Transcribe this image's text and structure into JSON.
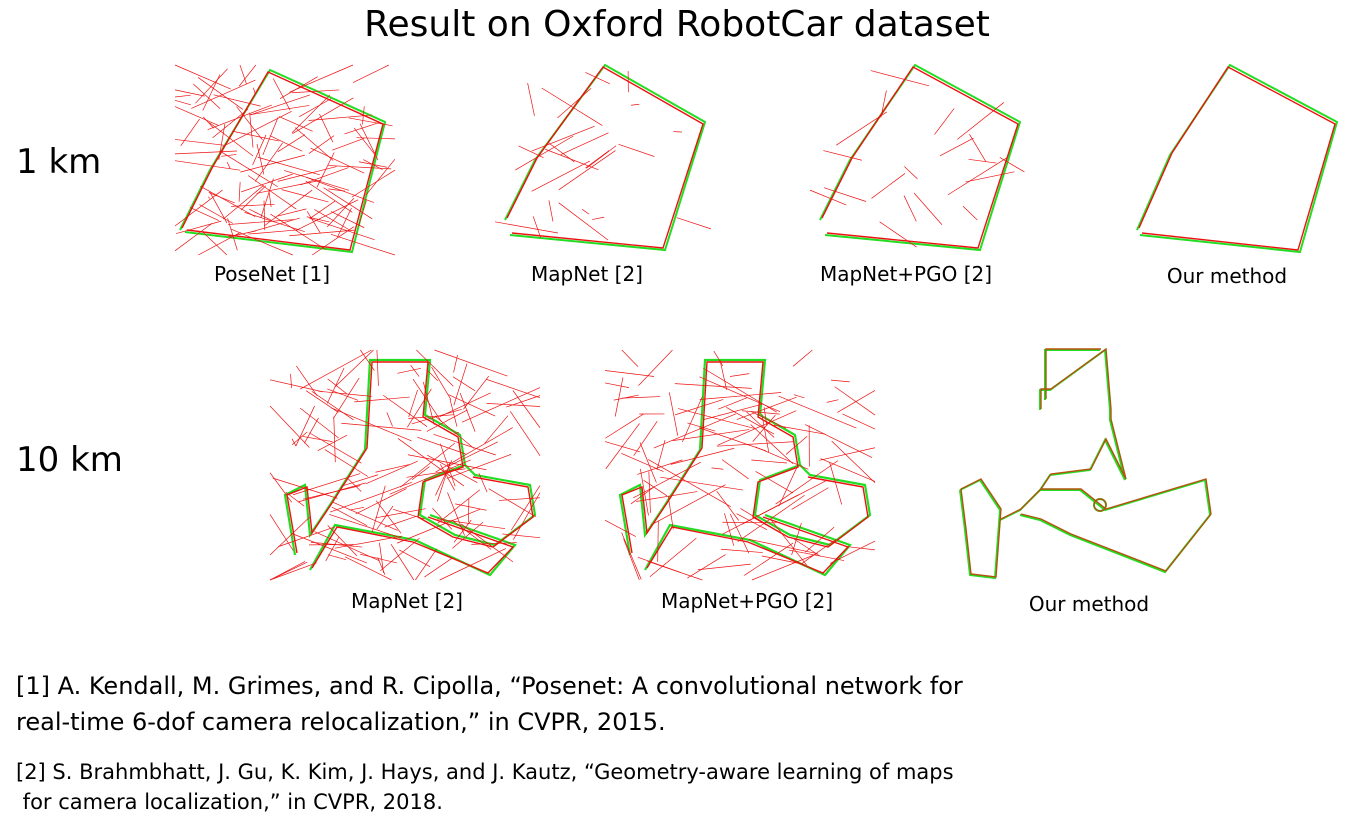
{
  "title": "Result on Oxford RobotCar dataset",
  "rows": [
    {
      "label": "1 km",
      "panels": [
        "PoseNet [1]",
        "MapNet [2]",
        "MapNet+PGO [2]",
        "Our method"
      ]
    },
    {
      "label": "10 km",
      "panels": [
        "MapNet [2]",
        "MapNet+PGO [2]",
        "Our method"
      ]
    }
  ],
  "colors": {
    "ground_truth": "#22dd22",
    "prediction": "#ee1111"
  },
  "references": [
    {
      "line1": "[1] A. Kendall, M. Grimes, and R. Cipolla, “Posenet: A convolutional network for",
      "line2": "real-time 6-dof camera relocalization,” in CVPR, 2015."
    },
    {
      "line1": "[2] S. Brahmbhatt, J. Gu, K. Kim, J. Hays, and J. Kautz, “Geometry-aware learning of maps",
      "line2": " for camera localization,” in CVPR, 2018."
    }
  ]
}
